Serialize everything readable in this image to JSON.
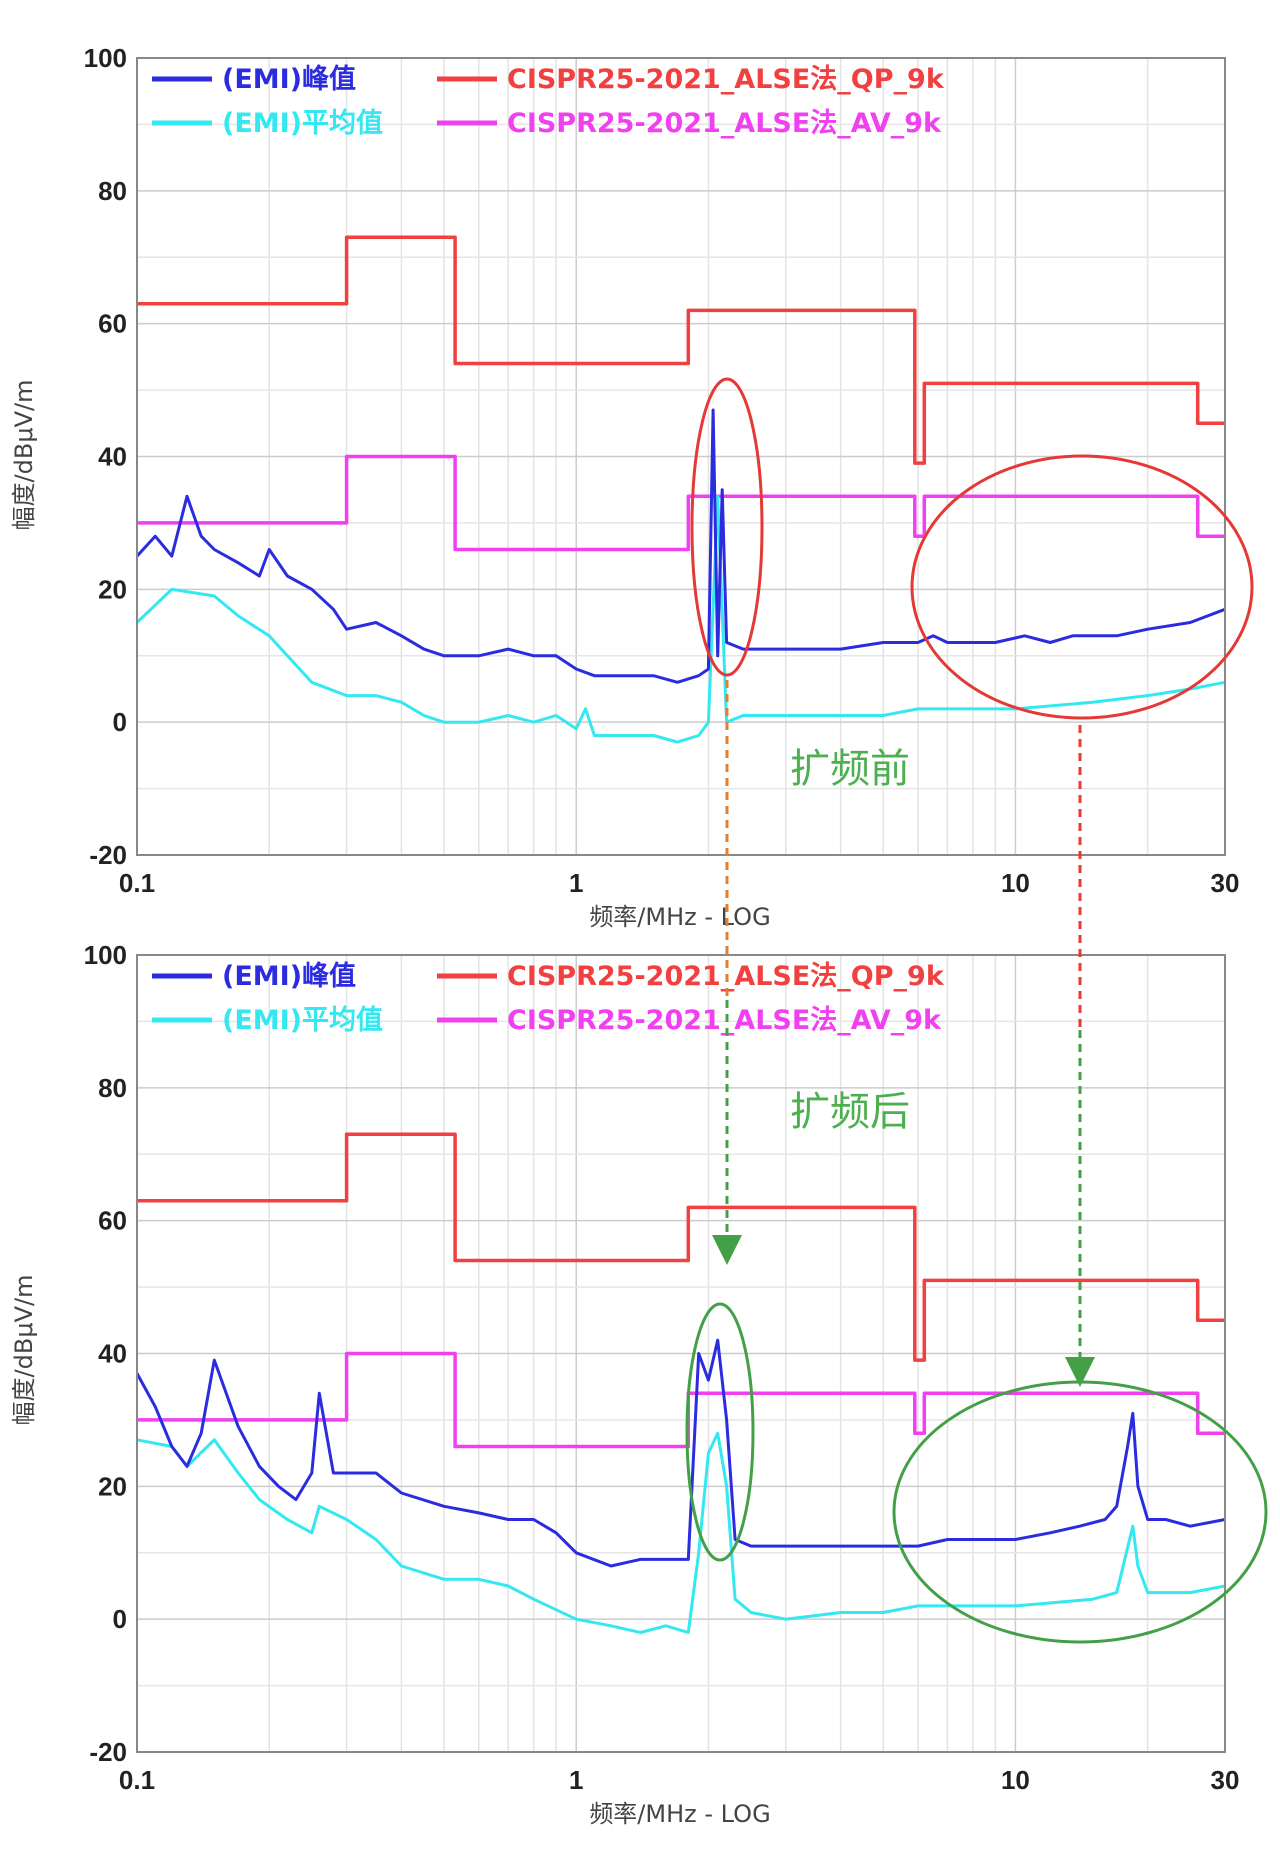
{
  "chart_data": [
    {
      "type": "line",
      "title": "",
      "annotation": "扩频前",
      "xlabel": "频率/MHz - LOG",
      "ylabel": "幅度/dBμV/m",
      "xscale": "log",
      "xlim": [
        0.1,
        30
      ],
      "ylim": [
        -20,
        100
      ],
      "xticks": [
        0.1,
        1,
        10,
        30
      ],
      "xtick_labels": [
        "0.1",
        "1",
        "10",
        "30"
      ],
      "yticks": [
        -20,
        0,
        20,
        40,
        60,
        80,
        100
      ],
      "ytick_labels": [
        "-20",
        "0",
        "20",
        "40",
        "60",
        "80",
        "100"
      ],
      "grid": true,
      "legend_position": "top",
      "colors": {
        "peak": "#2b2be0",
        "average": "#33e8f0",
        "qp_limit": "#f04040",
        "av_limit": "#f040f0",
        "annotation": "#4caf50",
        "highlight": "#e53935"
      },
      "series": [
        {
          "name": "(EMI)峰值",
          "color": "#2b2be0",
          "x": [
            0.1,
            0.11,
            0.12,
            0.13,
            0.14,
            0.15,
            0.17,
            0.19,
            0.2,
            0.22,
            0.25,
            0.28,
            0.3,
            0.35,
            0.4,
            0.45,
            0.5,
            0.6,
            0.7,
            0.8,
            0.9,
            1.0,
            1.1,
            1.3,
            1.5,
            1.7,
            1.9,
            2.0,
            2.05,
            2.1,
            2.15,
            2.2,
            2.4,
            3,
            4,
            5,
            6,
            6.5,
            7,
            9,
            10.5,
            12,
            13.5,
            15,
            17,
            20,
            25,
            30
          ],
          "y": [
            25,
            28,
            25,
            34,
            28,
            26,
            24,
            22,
            26,
            22,
            20,
            17,
            14,
            15,
            13,
            11,
            10,
            10,
            11,
            10,
            10,
            8,
            7,
            7,
            7,
            6,
            7,
            8,
            47,
            10,
            35,
            12,
            11,
            11,
            11,
            12,
            12,
            13,
            12,
            12,
            13,
            12,
            13,
            13,
            13,
            14,
            15,
            17
          ]
        },
        {
          "name": "(EMI)平均值",
          "color": "#33e8f0",
          "x": [
            0.1,
            0.12,
            0.15,
            0.17,
            0.2,
            0.22,
            0.25,
            0.3,
            0.35,
            0.4,
            0.45,
            0.5,
            0.6,
            0.7,
            0.8,
            0.9,
            1.0,
            1.05,
            1.1,
            1.3,
            1.5,
            1.7,
            1.9,
            2.0,
            2.1,
            2.2,
            2.4,
            3,
            4,
            5,
            6,
            7,
            10,
            15,
            20,
            25,
            30
          ],
          "y": [
            15,
            20,
            19,
            16,
            13,
            10,
            6,
            4,
            4,
            3,
            1,
            0,
            0,
            1,
            0,
            1,
            -1,
            2,
            -2,
            -2,
            -2,
            -3,
            -2,
            0,
            34,
            0,
            1,
            1,
            1,
            1,
            2,
            2,
            2,
            3,
            4,
            5,
            6
          ]
        },
        {
          "name": "CISPR25-2021_ALSE法_QP_9k",
          "color": "#f04040",
          "x": [
            0.1,
            0.3,
            0.3,
            0.53,
            0.53,
            1.8,
            1.8,
            5.9,
            5.9,
            6.2,
            6.2,
            26,
            26,
            30
          ],
          "y": [
            63,
            63,
            73,
            73,
            54,
            54,
            62,
            62,
            39,
            39,
            51,
            51,
            45,
            45
          ]
        },
        {
          "name": "CISPR25-2021_ALSE法_AV_9k",
          "color": "#f040f0",
          "x": [
            0.1,
            0.3,
            0.3,
            0.53,
            0.53,
            1.8,
            1.8,
            5.9,
            5.9,
            6.2,
            6.2,
            26,
            26,
            30
          ],
          "y": [
            30,
            30,
            40,
            40,
            26,
            26,
            34,
            34,
            28,
            28,
            34,
            34,
            28,
            28
          ]
        }
      ]
    },
    {
      "type": "line",
      "title": "",
      "annotation": "扩频后",
      "xlabel": "频率/MHz - LOG",
      "ylabel": "幅度/dBμV/m",
      "xscale": "log",
      "xlim": [
        0.1,
        30
      ],
      "ylim": [
        -20,
        100
      ],
      "xticks": [
        0.1,
        1,
        10,
        30
      ],
      "xtick_labels": [
        "0.1",
        "1",
        "10",
        "30"
      ],
      "yticks": [
        -20,
        0,
        20,
        40,
        60,
        80,
        100
      ],
      "ytick_labels": [
        "-20",
        "0",
        "20",
        "40",
        "60",
        "80",
        "100"
      ],
      "grid": true,
      "legend_position": "top",
      "colors": {
        "peak": "#2b2be0",
        "average": "#33e8f0",
        "qp_limit": "#f04040",
        "av_limit": "#f040f0",
        "annotation": "#4caf50",
        "highlight": "#43a047"
      },
      "series": [
        {
          "name": "(EMI)峰值",
          "color": "#2b2be0",
          "x": [
            0.1,
            0.11,
            0.12,
            0.13,
            0.14,
            0.15,
            0.17,
            0.19,
            0.21,
            0.23,
            0.25,
            0.26,
            0.28,
            0.3,
            0.35,
            0.4,
            0.5,
            0.6,
            0.7,
            0.8,
            0.9,
            1.0,
            1.2,
            1.4,
            1.6,
            1.8,
            1.9,
            2.0,
            2.1,
            2.2,
            2.3,
            2.5,
            3,
            4,
            5,
            6,
            7,
            8,
            10,
            12,
            14,
            16,
            17,
            18,
            18.5,
            19,
            20,
            22,
            25,
            30
          ],
          "y": [
            37,
            32,
            26,
            23,
            28,
            39,
            29,
            23,
            20,
            18,
            22,
            34,
            22,
            22,
            22,
            19,
            17,
            16,
            15,
            15,
            13,
            10,
            8,
            9,
            9,
            9,
            40,
            36,
            42,
            30,
            12,
            11,
            11,
            11,
            11,
            11,
            12,
            12,
            12,
            13,
            14,
            15,
            17,
            26,
            31,
            20,
            15,
            15,
            14,
            15
          ]
        },
        {
          "name": "(EMI)平均值",
          "color": "#33e8f0",
          "x": [
            0.1,
            0.12,
            0.13,
            0.15,
            0.17,
            0.19,
            0.22,
            0.25,
            0.26,
            0.3,
            0.35,
            0.4,
            0.5,
            0.6,
            0.7,
            0.8,
            1.0,
            1.2,
            1.4,
            1.6,
            1.8,
            1.9,
            2.0,
            2.1,
            2.2,
            2.3,
            2.5,
            3,
            4,
            5,
            6,
            8,
            10,
            15,
            17,
            18.5,
            19,
            20,
            25,
            30
          ],
          "y": [
            27,
            26,
            23,
            27,
            22,
            18,
            15,
            13,
            17,
            15,
            12,
            8,
            6,
            6,
            5,
            3,
            0,
            -1,
            -2,
            -1,
            -2,
            10,
            25,
            28,
            20,
            3,
            1,
            0,
            1,
            1,
            2,
            2,
            2,
            3,
            4,
            14,
            8,
            4,
            4,
            5
          ]
        },
        {
          "name": "CISPR25-2021_ALSE法_QP_9k",
          "color": "#f04040",
          "x": [
            0.1,
            0.3,
            0.3,
            0.53,
            0.53,
            1.8,
            1.8,
            5.9,
            5.9,
            6.2,
            6.2,
            26,
            26,
            30
          ],
          "y": [
            63,
            63,
            73,
            73,
            54,
            54,
            62,
            62,
            39,
            39,
            51,
            51,
            45,
            45
          ]
        },
        {
          "name": "CISPR25-2021_ALSE法_AV_9k",
          "color": "#f040f0",
          "x": [
            0.1,
            0.3,
            0.3,
            0.53,
            0.53,
            1.8,
            1.8,
            5.9,
            5.9,
            6.2,
            6.2,
            26,
            26,
            30
          ],
          "y": [
            30,
            30,
            40,
            40,
            26,
            26,
            34,
            34,
            28,
            28,
            34,
            34,
            28,
            28
          ]
        }
      ]
    }
  ]
}
